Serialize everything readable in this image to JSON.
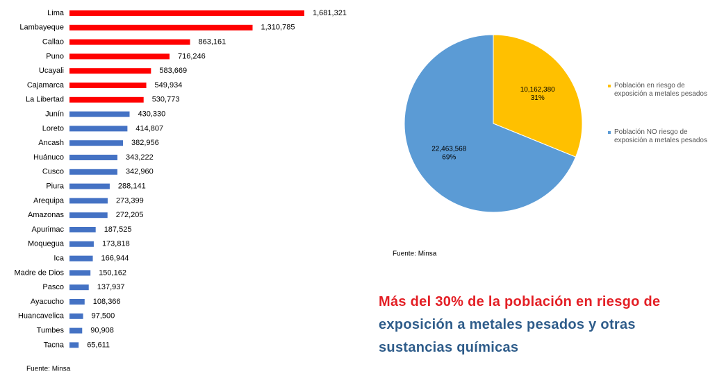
{
  "chart_data": [
    {
      "type": "bar",
      "orientation": "horizontal",
      "categories": [
        "Lima",
        "Lambayeque",
        "Callao",
        "Puno",
        "Ucayali",
        "Cajamarca",
        "La Libertad",
        "Junín",
        "Loreto",
        "Ancash",
        "Huánuco",
        "Cusco",
        "Piura",
        "Arequipa",
        "Amazonas",
        "Apurimac",
        "Moquegua",
        "Ica",
        "Madre de Dios",
        "Pasco",
        "Ayacucho",
        "Huancavelica",
        "Tumbes",
        "Tacna"
      ],
      "values": [
        1681321,
        1310785,
        863161,
        716246,
        583669,
        549934,
        530773,
        430330,
        414807,
        382956,
        343222,
        342960,
        288141,
        273399,
        272205,
        187525,
        173818,
        166944,
        150162,
        137937,
        108366,
        97500,
        90908,
        65611
      ],
      "value_labels": [
        "1,681,321",
        "1,310,785",
        "863,161",
        "716,246",
        "583,669",
        "549,934",
        "530,773",
        "430,330",
        "414,807",
        "382,956",
        "343,222",
        "342,960",
        "288,141",
        "273,399",
        "272,205",
        "187,525",
        "173,818",
        "166,944",
        "150,162",
        "137,937",
        "108,366",
        "97,500",
        "90,908",
        "65,611"
      ],
      "colors": [
        "#ff0000",
        "#ff0000",
        "#ff0000",
        "#ff0000",
        "#ff0000",
        "#ff0000",
        "#ff0000",
        "#4472c4",
        "#4472c4",
        "#4472c4",
        "#4472c4",
        "#4472c4",
        "#4472c4",
        "#4472c4",
        "#4472c4",
        "#4472c4",
        "#4472c4",
        "#4472c4",
        "#4472c4",
        "#4472c4",
        "#4472c4",
        "#4472c4",
        "#4472c4",
        "#4472c4"
      ],
      "source": "Fuente: Minsa"
    },
    {
      "type": "pie",
      "categories": [
        "Población en riesgo de exposición a metales pesados",
        "Población NO riesgo de exposición a metales pesados"
      ],
      "values": [
        10162380,
        22463568
      ],
      "value_labels": [
        "10,162,380",
        "22,463,568"
      ],
      "percent_labels": [
        "31%",
        "69%"
      ],
      "colors": [
        "#ffc000",
        "#5b9bd5"
      ],
      "legend": "right",
      "source": "Fuente: Minsa"
    }
  ],
  "headline": [
    "Más del 30% de la población en riesgo de",
    "exposición a metales pesados y otras",
    "sustancias químicas"
  ]
}
